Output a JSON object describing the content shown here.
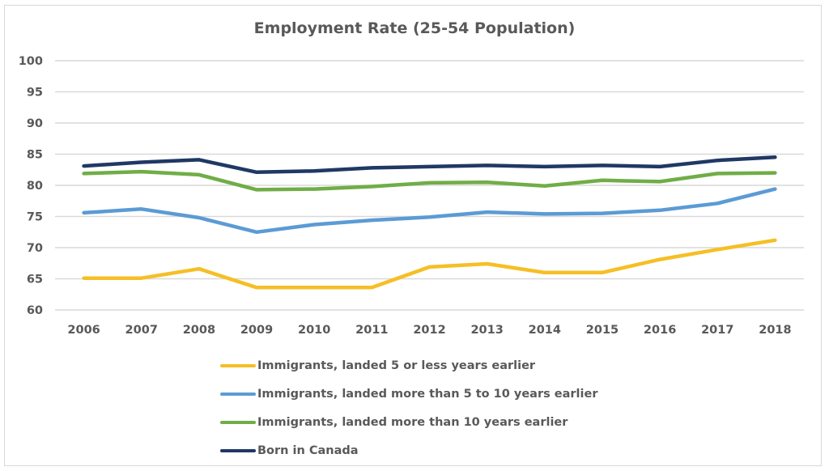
{
  "chart_data": {
    "type": "line",
    "title": "Employment Rate (25-54 Population)",
    "xlabel": "",
    "ylabel": "",
    "ylim": [
      60,
      100
    ],
    "yticks": [
      "100",
      "95",
      "90",
      "85",
      "80",
      "75",
      "70",
      "65",
      "60"
    ],
    "ytick_values": [
      100,
      95,
      90,
      85,
      80,
      75,
      70,
      65,
      60
    ],
    "grid": true,
    "legend_position": "bottom",
    "categories": [
      "2006",
      "2007",
      "2008",
      "2009",
      "2010",
      "2011",
      "2012",
      "2013",
      "2014",
      "2015",
      "2016",
      "2017",
      "2018"
    ],
    "series": [
      {
        "name": "Immigrants, landed 5 or less years earlier",
        "color": "#f5bf25",
        "values": [
          65.1,
          65.1,
          66.6,
          63.6,
          63.6,
          63.6,
          66.9,
          67.4,
          66.0,
          66.0,
          68.1,
          69.7,
          71.2
        ]
      },
      {
        "name": "Immigrants, landed more than 5 to 10 years earlier",
        "color": "#5b9bd5",
        "values": [
          75.6,
          76.2,
          74.8,
          72.5,
          73.7,
          74.4,
          74.9,
          75.7,
          75.4,
          75.5,
          76.0,
          77.1,
          79.4
        ]
      },
      {
        "name": "Immigrants, landed more than 10 years earlier",
        "color": "#70ad47",
        "values": [
          81.9,
          82.2,
          81.7,
          79.3,
          79.4,
          79.8,
          80.4,
          80.5,
          79.9,
          80.8,
          80.6,
          81.9,
          82.0
        ]
      },
      {
        "name": "Born in Canada",
        "color": "#203864",
        "values": [
          83.1,
          83.7,
          84.1,
          82.1,
          82.3,
          82.8,
          83.0,
          83.2,
          83.0,
          83.2,
          83.0,
          84.0,
          84.5
        ]
      }
    ]
  }
}
